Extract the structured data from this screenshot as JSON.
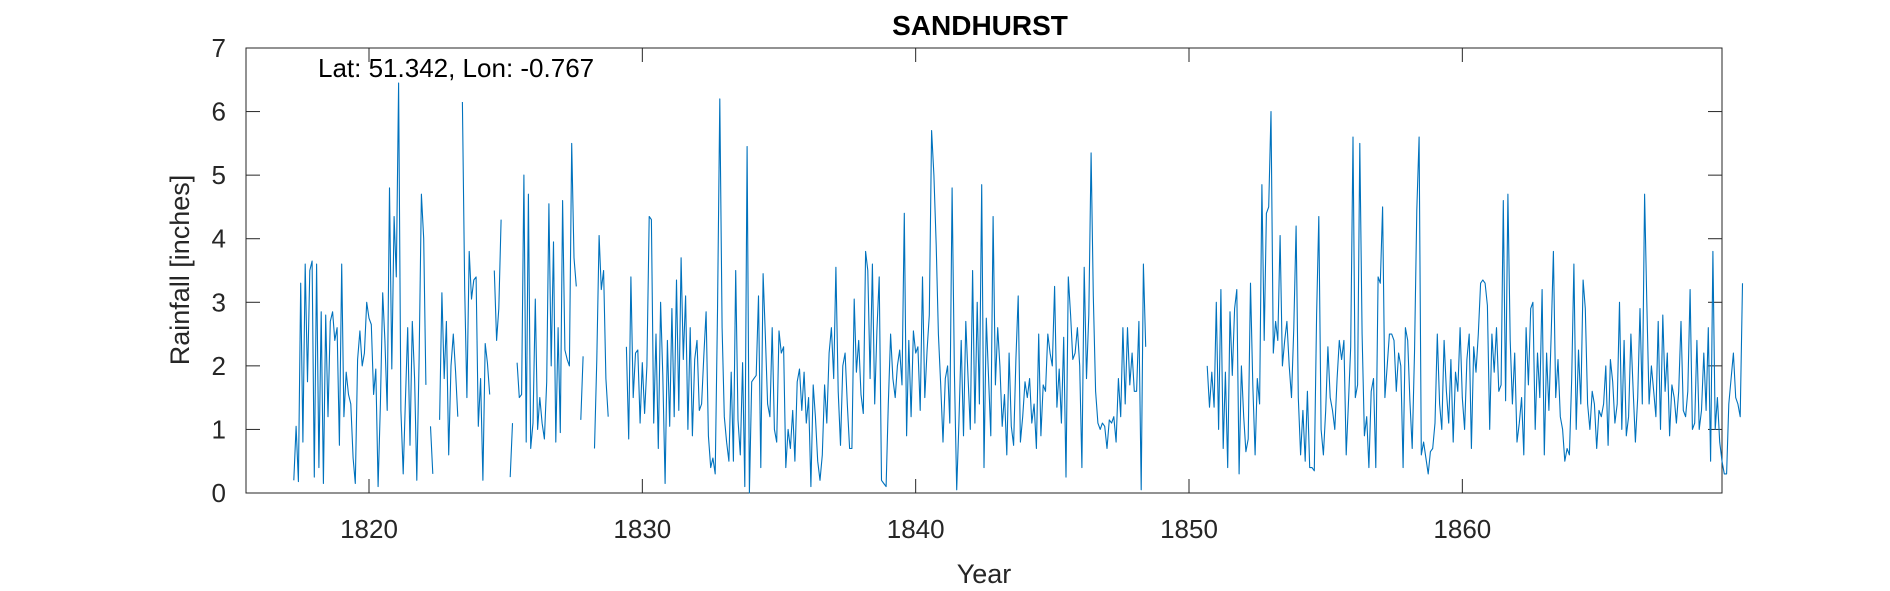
{
  "chart_data": {
    "type": "line",
    "title": "SANDHURST",
    "xlabel": "Year",
    "ylabel": "Rainfall [inches]",
    "annotation": "Lat: 51.342, Lon: -0.767",
    "xlim": [
      1815.5,
      1869.5
    ],
    "ylim": [
      0,
      7
    ],
    "xticks": [
      1820,
      1830,
      1840,
      1850,
      1860
    ],
    "yticks": [
      0,
      1,
      2,
      3,
      4,
      5,
      6,
      7
    ],
    "grid": false,
    "colors": {
      "series": "#0072BD",
      "axis": "#262626"
    },
    "series": [
      {
        "start": 1817.25,
        "step": 0.0833333,
        "values": [
          0.2,
          1.05,
          0.18,
          3.3,
          0.8,
          3.6,
          1.75,
          3.5,
          3.65,
          0.25,
          3.6,
          0.4,
          2.85,
          0.15,
          2.8,
          1.2,
          2.7,
          2.85,
          2.4,
          2.6,
          0.75,
          3.6,
          1.2,
          1.9,
          1.55,
          1.4,
          0.55,
          0.15,
          2.1,
          2.55,
          2.0,
          2.2,
          3.0,
          2.75,
          2.65,
          1.55,
          1.95,
          0.1,
          1.4,
          3.15,
          2.4,
          1.3,
          4.8,
          1.95,
          4.35,
          3.4,
          6.45,
          1.3,
          0.3,
          1.45,
          2.6,
          0.75,
          2.7,
          1.8,
          0.2,
          2.1,
          4.7,
          4.0,
          1.7,
          null,
          1.05,
          0.3,
          null,
          null,
          1.15,
          3.15,
          1.8,
          2.7,
          0.6,
          2.0,
          2.5,
          1.9,
          1.2,
          null,
          6.15,
          3.2,
          1.5,
          3.8,
          3.05,
          3.35,
          3.4,
          1.05,
          1.8,
          0.2,
          2.35,
          2.05,
          1.55,
          null,
          3.5,
          2.4,
          2.9,
          4.3,
          null,
          null,
          null,
          0.25,
          1.1,
          null,
          2.05,
          1.5,
          1.55,
          5.0,
          0.8,
          4.7,
          0.7,
          1.1,
          3.05,
          1.0,
          1.5,
          1.1,
          0.85,
          1.75,
          4.55,
          2.0,
          3.95,
          0.8,
          2.6,
          0.95,
          4.6,
          2.25,
          2.1,
          2.0,
          5.5,
          3.7,
          3.25,
          null,
          1.15,
          2.15,
          null,
          null,
          null,
          null,
          0.7,
          2.1,
          4.05,
          3.2,
          3.5,
          1.8,
          1.2,
          null,
          null,
          null,
          null,
          null,
          null,
          null,
          2.3,
          0.85,
          3.4,
          1.5,
          2.2,
          2.25,
          1.1,
          2.05,
          1.25,
          2.0,
          4.35,
          4.3,
          1.1,
          2.5,
          0.7,
          3.0,
          1.85,
          0.15,
          2.4,
          1.05,
          2.9,
          1.2,
          3.35,
          1.3,
          3.7,
          2.1,
          3.1,
          1.0,
          2.6,
          0.9,
          2.1,
          2.4,
          1.3,
          1.4,
          2.15,
          2.85,
          0.9,
          0.4,
          0.55,
          0.3,
          2.85,
          6.2,
          2.6,
          1.2,
          0.8,
          0.5,
          1.9,
          0.5,
          3.5,
          1.15,
          0.6,
          2.05,
          0.1,
          5.45,
          0.0,
          1.75,
          1.8,
          1.85,
          3.1,
          0.4,
          3.45,
          2.5,
          1.4,
          1.2,
          2.6,
          1.0,
          0.8,
          2.55,
          2.2,
          2.3,
          0.4,
          1.0,
          0.7,
          1.3,
          0.5,
          1.75,
          1.95,
          1.3,
          1.9,
          1.1,
          1.5,
          0.1,
          1.7,
          1.2,
          0.5,
          0.2,
          0.6,
          1.7,
          1.1,
          2.2,
          2.6,
          1.8,
          3.55,
          1.6,
          0.75,
          2.0,
          2.2,
          1.4,
          0.7,
          0.7,
          3.05,
          1.9,
          2.4,
          1.55,
          1.25,
          3.8,
          3.5,
          1.8,
          3.6,
          1.4,
          2.55,
          3.4,
          0.2,
          0.15,
          0.1,
          1.4,
          2.5,
          1.8,
          1.5,
          2.0,
          2.25,
          1.7,
          4.4,
          0.9,
          2.4,
          1.2,
          2.55,
          2.2,
          2.3,
          1.3,
          3.4,
          1.5,
          2.25,
          2.8,
          5.7,
          5.0,
          3.9,
          2.5,
          1.7,
          0.8,
          1.8,
          2.0,
          1.1,
          4.8,
          1.9,
          0.05,
          1.1,
          2.4,
          0.9,
          2.7,
          1.8,
          1.0,
          3.5,
          1.1,
          3.0,
          1.4,
          4.85,
          0.4,
          2.75,
          1.8,
          0.9,
          4.35,
          1.7,
          2.6,
          2.0,
          1.05,
          1.55,
          0.6,
          2.2,
          1.05,
          0.75,
          2.1,
          3.1,
          0.8,
          1.2,
          1.75,
          1.5,
          1.8,
          1.1,
          1.4,
          0.7,
          2.5,
          0.9,
          1.7,
          1.6,
          2.5,
          2.2,
          2.0,
          3.25,
          1.35,
          1.95,
          1.1,
          2.45,
          0.25,
          3.4,
          2.8,
          2.1,
          2.2,
          2.6,
          2.0,
          0.4,
          3.55,
          1.8,
          2.8,
          5.35,
          3.1,
          1.6,
          1.1,
          1.0,
          1.1,
          1.05,
          0.7,
          1.15,
          1.1,
          1.2,
          0.8,
          1.8,
          1.2,
          2.6,
          1.4,
          2.6,
          1.7,
          2.2,
          1.6,
          1.6,
          2.7,
          0.05,
          3.6,
          2.3,
          null,
          null,
          null,
          null,
          null,
          null,
          null,
          null,
          null,
          null,
          null,
          null,
          null,
          null,
          null,
          null,
          null,
          null,
          null,
          null,
          null,
          null,
          null,
          null,
          null,
          null,
          2.0,
          1.35,
          1.9,
          1.35,
          3.0,
          1.0,
          3.2,
          0.7,
          1.9,
          0.4,
          2.85,
          1.85,
          2.9,
          3.2,
          0.3,
          2.0,
          1.2,
          0.65,
          0.85,
          3.3,
          1.7,
          0.6,
          1.8,
          1.4,
          4.85,
          2.4,
          4.4,
          4.5,
          6.0,
          2.2,
          2.7,
          2.4,
          4.05,
          2.0,
          2.4,
          2.7,
          2.0,
          1.5,
          2.6,
          4.2,
          1.5,
          0.6,
          1.3,
          0.5,
          1.6,
          0.4,
          0.4,
          0.35,
          2.8,
          4.35,
          1.0,
          0.6,
          1.3,
          2.3,
          1.5,
          1.3,
          1.0,
          1.8,
          2.4,
          2.1,
          2.4,
          0.6,
          1.4,
          2.3,
          5.6,
          1.5,
          1.7,
          5.5,
          2.5,
          0.9,
          1.2,
          0.4,
          1.6,
          1.8,
          0.4,
          3.4,
          3.3,
          4.5,
          1.5,
          2.0,
          2.5,
          2.5,
          2.4,
          1.6,
          2.2,
          2.0,
          0.4,
          2.6,
          2.4,
          1.45,
          0.7,
          2.2,
          4.45,
          5.6,
          0.6,
          0.8,
          0.55,
          0.3,
          0.65,
          0.7,
          1.1,
          2.5,
          1.4,
          1.0,
          2.4,
          1.6,
          1.1,
          2.1,
          0.8,
          1.9,
          1.6,
          2.6,
          1.5,
          1.0,
          2.1,
          2.5,
          0.7,
          2.3,
          1.9,
          2.5,
          3.3,
          3.35,
          3.3,
          2.95,
          1.0,
          2.5,
          1.9,
          2.6,
          1.6,
          1.7,
          4.6,
          1.45,
          4.7,
          2.4,
          1.4,
          2.2,
          0.8,
          1.1,
          1.5,
          0.6,
          2.6,
          1.7,
          2.9,
          3.0,
          1.0,
          2.2,
          1.5,
          3.2,
          0.6,
          2.2,
          1.3,
          2.5,
          3.8,
          1.5,
          2.1,
          1.2,
          1.0,
          0.5,
          0.7,
          0.6,
          1.8,
          3.6,
          1.0,
          2.25,
          1.4,
          3.35,
          2.9,
          1.4,
          1.0,
          1.6,
          1.4,
          0.7,
          1.3,
          1.2,
          1.4,
          2.0,
          0.75,
          2.1,
          1.75,
          1.1,
          1.4,
          3.0,
          1.0,
          2.4,
          0.9,
          1.2,
          2.5,
          1.6,
          0.8,
          1.5,
          2.9,
          1.4,
          4.7,
          3.0,
          1.4,
          2.0,
          1.6,
          1.2,
          2.7,
          1.0,
          2.8,
          1.6,
          2.2,
          0.9,
          1.7,
          1.5,
          1.1,
          1.6,
          2.7,
          1.3,
          1.2,
          1.6,
          3.2,
          1.0,
          1.1,
          2.4,
          1.0,
          1.3,
          2.2,
          1.3,
          2.6,
          0.5,
          3.8,
          1.0,
          1.5,
          0.8,
          0.5,
          0.3,
          0.3,
          1.4,
          1.8,
          2.2,
          1.5,
          1.4,
          1.2,
          3.3
        ]
      }
    ]
  }
}
